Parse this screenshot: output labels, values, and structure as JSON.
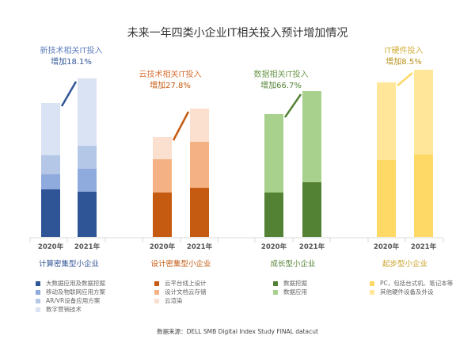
{
  "chart_data": {
    "type": "bar",
    "stacked": true,
    "title": "未来一年四类小企业IT相关投入预计增加情况",
    "source": "数据来源：DELL SMB Digital Index Study FINAL datacut",
    "grid": false,
    "legend_position": "bottom",
    "groups": [
      {
        "name": "计算密集型小企业",
        "color": "#2f5597",
        "annotation": [
          "新技术相关IT投入",
          "增加18.1%"
        ],
        "categories": [
          "2020年",
          "2021年"
        ],
        "series": [
          {
            "name": "大数据应用及数据挖掘",
            "color": "#2f5597",
            "values": [
              60,
              57
            ]
          },
          {
            "name": "移动及物联网应用方案",
            "color": "#8faadc",
            "values": [
              19,
              29
            ]
          },
          {
            "name": "AR/VR设备应用方案",
            "color": "#b4c7e7",
            "values": [
              24,
              29
            ]
          },
          {
            "name": "数字营销技术",
            "color": "#dae3f3",
            "values": [
              66,
              85
            ]
          }
        ]
      },
      {
        "name": "设计密集型小企业",
        "color": "#c55a11",
        "annotation": [
          "云技术相关IT投入",
          "增加27.8%"
        ],
        "categories": [
          "2020年",
          "2021年"
        ],
        "series": [
          {
            "name": "云平台线上设计",
            "color": "#c55a11",
            "values": [
              56,
              62
            ]
          },
          {
            "name": "设计文档云存储",
            "color": "#f4b183",
            "values": [
              42,
              58
            ]
          },
          {
            "name": "云渲染",
            "color": "#fbe0cf",
            "values": [
              28,
              42
            ]
          }
        ]
      },
      {
        "name": "成长型小企业",
        "color": "#548235",
        "annotation": [
          "数据相关IT投入",
          "增加66.7%"
        ],
        "categories": [
          "2020年",
          "2021年"
        ],
        "series": [
          {
            "name": "数据挖掘",
            "color": "#548235",
            "values": [
              56,
              69
            ]
          },
          {
            "name": "数据应用",
            "color": "#a9d18e",
            "values": [
              99,
              115
            ]
          }
        ]
      },
      {
        "name": "起步型小企业",
        "color": "#c9a227",
        "annotation": [
          "IT硬件投入",
          "增加8.5%"
        ],
        "categories": [
          "2020年",
          "2021年"
        ],
        "series": [
          {
            "name": "PC，包括台式机、笔记本等",
            "color": "#ffd966",
            "values": [
              97,
              104
            ]
          },
          {
            "name": "其他硬件设备及外设",
            "color": "#ffe699",
            "values": [
              98,
              107
            ]
          }
        ]
      }
    ]
  }
}
